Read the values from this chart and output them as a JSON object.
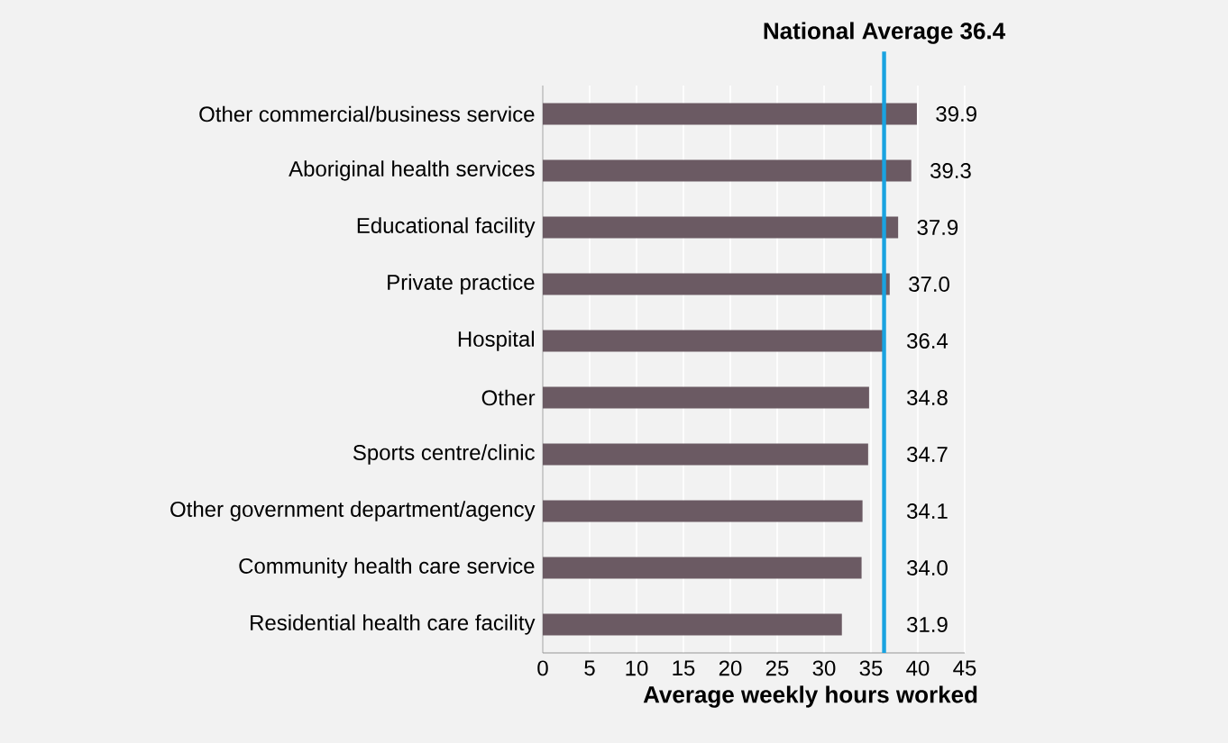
{
  "chart_data": {
    "type": "bar",
    "orientation": "horizontal",
    "xlabel": "Average weekly hours worked",
    "categories": [
      "Other commercial/business service",
      "Aboriginal health services",
      "Educational facility",
      "Private practice",
      "Hospital",
      "Other",
      "Sports centre/clinic",
      "Other government department/agency",
      "Community health care service",
      "Residential health care facility"
    ],
    "values": [
      39.9,
      39.3,
      37.9,
      37.0,
      36.4,
      34.8,
      34.7,
      34.1,
      34.0,
      31.9
    ],
    "value_labels": [
      "39.9",
      "39.3",
      "37.9",
      "37.0",
      "36.4",
      "34.8",
      "34.7",
      "34.1",
      "34.0",
      "31.9"
    ],
    "color": "#6b5a63",
    "xlim": [
      0,
      45
    ],
    "xticks": [
      0,
      5,
      10,
      15,
      20,
      25,
      30,
      35,
      40,
      45
    ],
    "grid": "x",
    "ref_lines": [
      {
        "axis": "x",
        "value": 36.4,
        "label": "National Average 36.4",
        "color": "#1aa3e0"
      }
    ]
  }
}
